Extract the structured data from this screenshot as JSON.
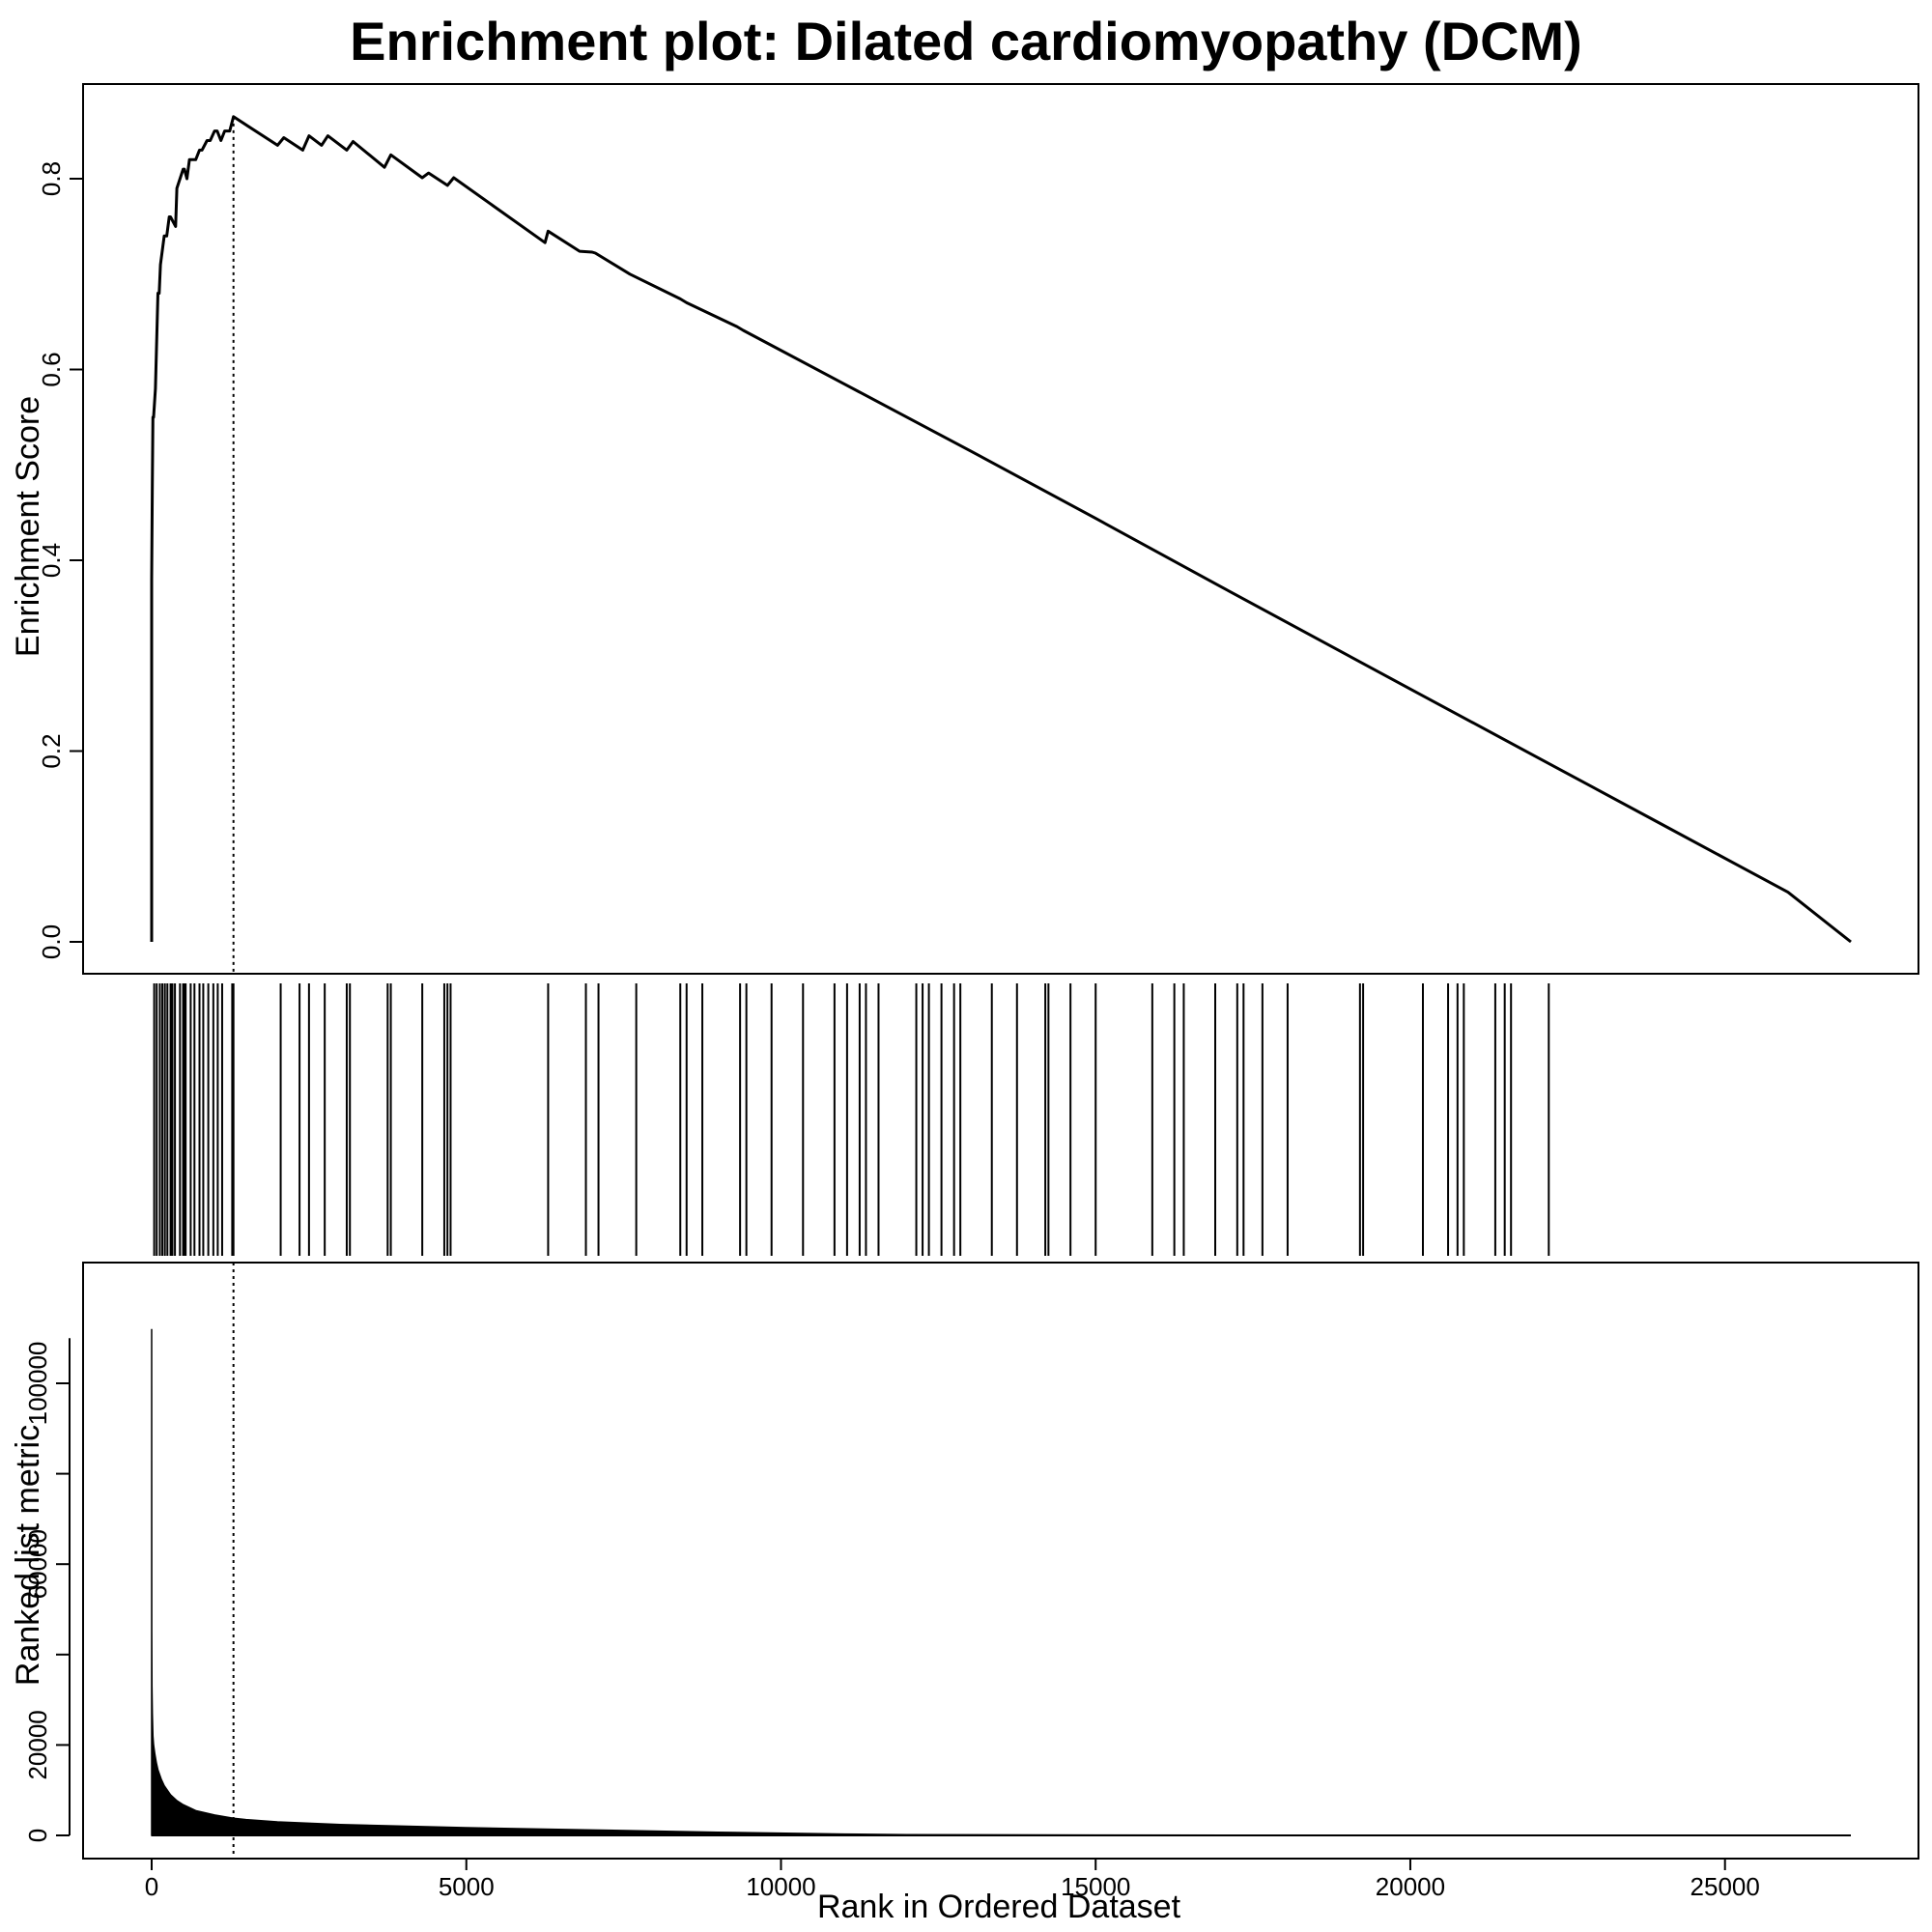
{
  "chart_data": {
    "type": "line",
    "title": "Enrichment plot: Dilated cardiomyopathy (DCM)",
    "xlabel": "Rank in Ordered Dataset",
    "xlim": [
      0,
      27000
    ],
    "x_ticks": [
      0,
      5000,
      10000,
      15000,
      20000,
      25000
    ],
    "leading_edge_rank": 1300,
    "enrichment": {
      "ylabel": "Enrichment Score",
      "ylim": [
        0.0,
        0.88
      ],
      "y_ticks": [
        0.0,
        0.2,
        0.4,
        0.6,
        0.8
      ],
      "y_tick_labels": [
        "0.0",
        "0.2",
        "0.4",
        "0.6",
        "0.8"
      ],
      "series": [
        {
          "x": [
            0,
            0,
            10,
            20,
            30,
            60,
            100,
            120,
            140,
            200,
            240,
            280,
            300,
            380,
            400,
            500,
            520,
            560,
            600,
            700,
            760,
            800,
            880,
            930,
            1000,
            1040,
            1100,
            1160,
            1240,
            1300,
            2000,
            2100,
            2400,
            2500,
            2700,
            2800,
            3100,
            3200,
            3700,
            3800,
            4300,
            4400,
            4700,
            4800,
            6250,
            6300,
            6800,
            7000,
            7050,
            7600,
            8400,
            8500,
            9300,
            9400,
            11000,
            13000,
            15000,
            17000,
            20000,
            22000,
            24000,
            26000,
            27000
          ],
          "y": [
            0.0,
            0.38,
            0.48,
            0.55,
            0.55,
            0.58,
            0.68,
            0.68,
            0.71,
            0.74,
            0.74,
            0.76,
            0.76,
            0.75,
            0.79,
            0.81,
            0.81,
            0.8,
            0.82,
            0.82,
            0.83,
            0.83,
            0.84,
            0.84,
            0.85,
            0.85,
            0.84,
            0.85,
            0.85,
            0.865,
            0.835,
            0.843,
            0.83,
            0.845,
            0.835,
            0.845,
            0.83,
            0.839,
            0.812,
            0.825,
            0.801,
            0.806,
            0.793,
            0.801,
            0.733,
            0.745,
            0.724,
            0.723,
            0.722,
            0.7,
            0.674,
            0.67,
            0.645,
            0.641,
            0.585,
            0.515,
            0.444,
            0.372,
            0.265,
            0.194,
            0.123,
            0.052,
            0.0
          ]
        }
      ]
    },
    "hits": [
      40,
      80,
      130,
      170,
      210,
      250,
      300,
      330,
      370,
      450,
      500,
      520,
      540,
      620,
      680,
      760,
      820,
      900,
      980,
      1050,
      1120,
      1280,
      1300,
      2050,
      2350,
      2500,
      2750,
      3100,
      3150,
      3750,
      3800,
      4300,
      4650,
      4700,
      4750,
      6300,
      6900,
      7100,
      7700,
      8400,
      8500,
      8750,
      9350,
      9450,
      9850,
      10350,
      10850,
      11050,
      11250,
      11350,
      11550,
      12150,
      12250,
      12350,
      12550,
      12750,
      12850,
      13350,
      13750,
      14200,
      14250,
      14600,
      15000,
      15900,
      16250,
      16400,
      16900,
      17250,
      17350,
      17650,
      18050,
      19200,
      19250,
      20200,
      20600,
      20750,
      20850,
      21350,
      21500,
      21600,
      22200
    ],
    "metric": {
      "ylabel": "Ranked list metric",
      "ylim": [
        -5500,
        120000
      ],
      "y_ticks": [
        0,
        20000,
        60000,
        100000
      ],
      "y_tick_labels": [
        "0",
        "20000",
        "60000",
        "100000"
      ],
      "y_minor_ticks": [
        40000,
        80000
      ],
      "rank": [
        0,
        2,
        5,
        10,
        20,
        30,
        50,
        75,
        100,
        150,
        200,
        300,
        400,
        500,
        700,
        1000,
        1300,
        1500,
        2000,
        3000,
        5000,
        7000,
        9000,
        11000,
        12000,
        15000,
        20000,
        27000
      ],
      "values": [
        112000,
        45000,
        33000,
        27000,
        22000,
        20000,
        18000,
        16000,
        14500,
        12500,
        11000,
        9000,
        7700,
        6800,
        5500,
        4500,
        3800,
        3500,
        3000,
        2400,
        1700,
        1200,
        700,
        300,
        150,
        80,
        30,
        0
      ]
    }
  }
}
